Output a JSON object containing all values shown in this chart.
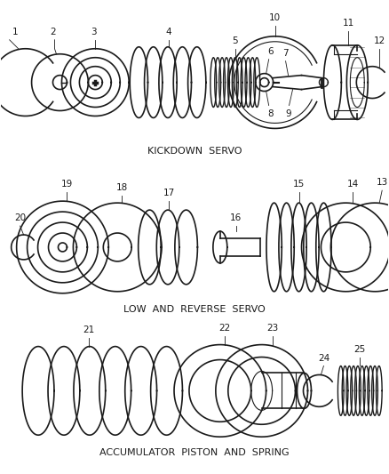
{
  "bg_color": "#ffffff",
  "line_color": "#1a1a1a",
  "section1_label": "KICKDOWN  SERVO",
  "section2_label": "LOW  AND  REVERSE  SERVO",
  "section3_label": "ACCUMULATOR  PISTON  AND  SPRING",
  "fig_width": 4.38,
  "fig_height": 5.33,
  "dpi": 100
}
